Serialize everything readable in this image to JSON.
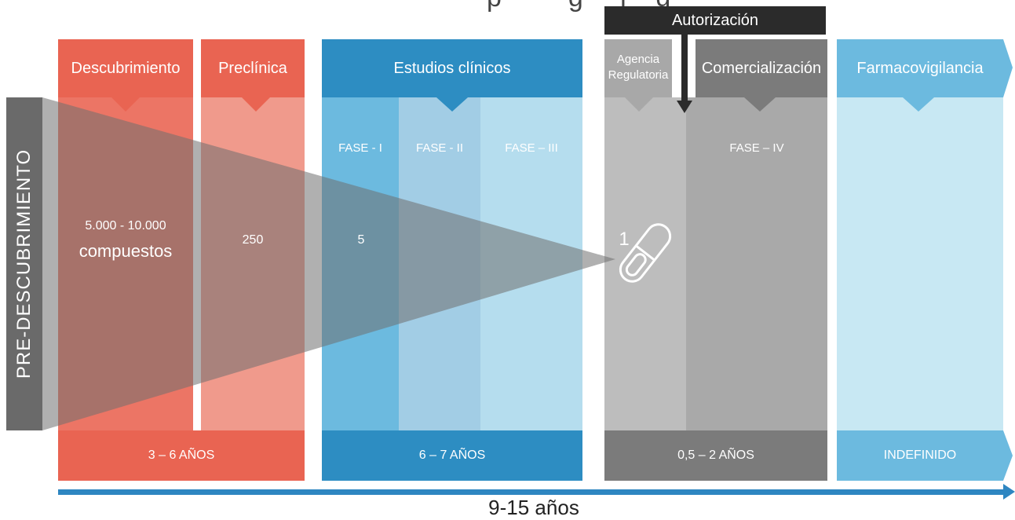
{
  "top_clipped_title": "p         g     j    g",
  "authorization": {
    "label": "Autorización"
  },
  "headers": {
    "descubrimiento": "Descubrimiento",
    "preclinica": "Preclínica",
    "estudios_clinicos": "Estudios clínicos",
    "agencia_regulatoria": "Agencia Regulatoria",
    "comercializacion": "Comercialización",
    "farmacovigilancia": "Farmacovigilancia"
  },
  "phases": {
    "fase1": "FASE - I",
    "fase2": "FASE - II",
    "fase3": "FASE – III",
    "fase4": "FASE – IV"
  },
  "counts": {
    "discovery_range": "5.000 - 10.000",
    "discovery_unit": "compuestos",
    "preclinical": "250",
    "clinical": "5",
    "approved": "1"
  },
  "pre_discovery_label": "PRE-DESCUBRIMIENTO",
  "durations": {
    "discovery_preclinical": "3 – 6 AÑOS",
    "clinical": "6 – 7 AÑOS",
    "regulatory_commercial": "0,5 – 2 AÑOS",
    "pharmacovigilance": "INDEFINIDO"
  },
  "total_duration": "9-15 años",
  "colors": {
    "red_dark": "#e96452",
    "red_light": "#f09a8c",
    "blue_dark": "#2d8dc2",
    "blue_mid": "#6cbadf",
    "blue_light": "#a9d6ec",
    "gray_light": "#bdbdbd",
    "gray_dark": "#7b7b7b",
    "cyan_light": "#c8e8f3",
    "arrow_blue": "#2e86c1"
  },
  "icons": {
    "capsule": "capsule-icon",
    "down_arrow": "down-arrow-icon"
  }
}
